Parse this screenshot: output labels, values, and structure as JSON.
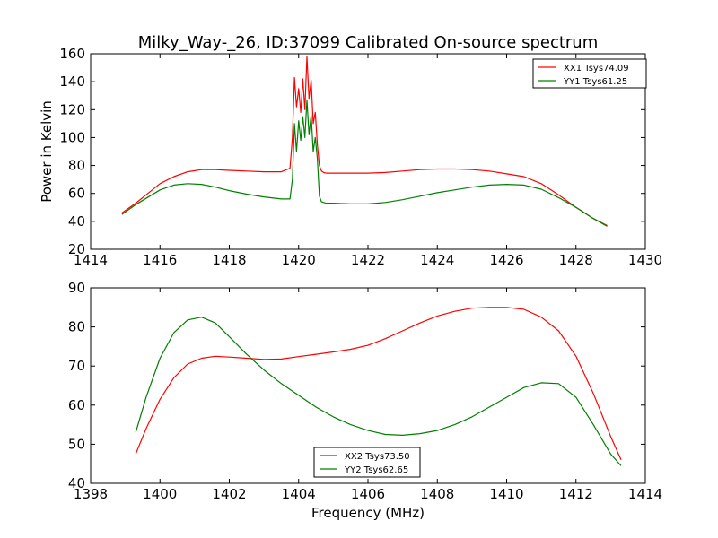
{
  "chart_data": [
    {
      "type": "line",
      "title": "Milky_Way-_26, ID:37099 Calibrated On-source spectrum",
      "xlabel": "",
      "ylabel": "Power in Kelvin",
      "xlim": [
        1414,
        1430
      ],
      "ylim": [
        20,
        160
      ],
      "xticks": [
        "1414",
        "1416",
        "1418",
        "1420",
        "1422",
        "1424",
        "1426",
        "1428",
        "1430"
      ],
      "yticks": [
        "20",
        "40",
        "60",
        "80",
        "100",
        "120",
        "140",
        "160"
      ],
      "legend_position": "top-right",
      "grid": false,
      "series": [
        {
          "name": "XX1 Tsys74.09",
          "color": "#ff0000",
          "x": [
            1414.9,
            1415.3,
            1415.7,
            1416.0,
            1416.4,
            1416.8,
            1417.2,
            1417.6,
            1418.0,
            1418.5,
            1419.0,
            1419.5,
            1419.75,
            1419.82,
            1419.88,
            1419.94,
            1420.0,
            1420.06,
            1420.12,
            1420.18,
            1420.24,
            1420.3,
            1420.36,
            1420.42,
            1420.48,
            1420.54,
            1420.6,
            1420.66,
            1420.72,
            1420.8,
            1421.0,
            1421.5,
            1422.0,
            1422.5,
            1423.0,
            1423.5,
            1424.0,
            1424.5,
            1425.0,
            1425.5,
            1426.0,
            1426.5,
            1427.0,
            1427.5,
            1428.0,
            1428.5,
            1428.9
          ],
          "y": [
            46,
            53,
            61,
            67,
            72,
            75.5,
            77,
            77,
            76.5,
            76,
            75.5,
            75.5,
            78,
            100,
            143,
            122,
            135,
            118,
            142,
            120,
            158,
            128,
            141,
            110,
            118,
            95,
            80,
            76,
            75,
            74.5,
            74.5,
            74.5,
            74.5,
            75,
            76,
            77,
            77.5,
            77.5,
            77,
            76,
            74,
            72,
            67,
            59,
            50,
            42,
            37
          ]
        },
        {
          "name": "YY1 Tsys61.25",
          "color": "#008000",
          "x": [
            1414.9,
            1415.3,
            1415.7,
            1416.0,
            1416.4,
            1416.8,
            1417.2,
            1417.6,
            1418.0,
            1418.5,
            1419.0,
            1419.5,
            1419.75,
            1419.82,
            1419.88,
            1419.94,
            1420.0,
            1420.06,
            1420.12,
            1420.18,
            1420.24,
            1420.3,
            1420.36,
            1420.42,
            1420.48,
            1420.54,
            1420.6,
            1420.66,
            1420.72,
            1420.8,
            1421.0,
            1421.5,
            1422.0,
            1422.5,
            1423.0,
            1423.5,
            1424.0,
            1424.5,
            1425.0,
            1425.5,
            1426.0,
            1426.5,
            1427.0,
            1427.5,
            1428.0,
            1428.5,
            1428.9
          ],
          "y": [
            45,
            52,
            58,
            62.5,
            66,
            67,
            66.5,
            64.5,
            62,
            59.5,
            57.5,
            56,
            56,
            70,
            110,
            90,
            112,
            98,
            115,
            100,
            127,
            102,
            116,
            90,
            100,
            85,
            58,
            54,
            53.5,
            53,
            53,
            52.5,
            52.5,
            53.5,
            55.5,
            58,
            60.5,
            62.5,
            64.5,
            66,
            66.5,
            66,
            63,
            57,
            50,
            42,
            36.5
          ]
        }
      ]
    },
    {
      "type": "line",
      "title": "",
      "xlabel": "Frequency (MHz)",
      "ylabel": "",
      "xlim": [
        1398,
        1414
      ],
      "ylim": [
        40,
        90
      ],
      "xticks": [
        "1398",
        "1400",
        "1402",
        "1404",
        "1406",
        "1408",
        "1410",
        "1412",
        "1414"
      ],
      "yticks": [
        "40",
        "50",
        "60",
        "70",
        "80",
        "90"
      ],
      "legend_position": "lower-center",
      "grid": false,
      "series": [
        {
          "name": "XX2 Tsys73.50",
          "color": "#ff0000",
          "x": [
            1399.3,
            1399.6,
            1400.0,
            1400.4,
            1400.8,
            1401.2,
            1401.6,
            1402.0,
            1402.5,
            1403.0,
            1403.5,
            1404.0,
            1404.5,
            1405.0,
            1405.5,
            1406.0,
            1406.5,
            1407.0,
            1407.5,
            1408.0,
            1408.5,
            1409.0,
            1409.5,
            1410.0,
            1410.5,
            1411.0,
            1411.5,
            1412.0,
            1412.5,
            1413.0,
            1413.3
          ],
          "y": [
            47.5,
            54,
            61.5,
            67,
            70.5,
            72,
            72.5,
            72.3,
            72,
            71.7,
            71.8,
            72.4,
            73,
            73.6,
            74.3,
            75.3,
            77,
            79,
            81,
            82.8,
            84,
            84.8,
            85,
            85,
            84.5,
            82.5,
            79,
            72.5,
            63,
            52,
            46
          ]
        },
        {
          "name": "YY2 Tsys62.65",
          "color": "#008000",
          "x": [
            1399.3,
            1399.6,
            1400.0,
            1400.4,
            1400.8,
            1401.2,
            1401.6,
            1402.0,
            1402.5,
            1403.0,
            1403.5,
            1404.0,
            1404.5,
            1405.0,
            1405.5,
            1406.0,
            1406.5,
            1407.0,
            1407.5,
            1408.0,
            1408.5,
            1409.0,
            1409.5,
            1410.0,
            1410.5,
            1411.0,
            1411.5,
            1412.0,
            1412.5,
            1413.0,
            1413.3
          ],
          "y": [
            53,
            62,
            72,
            78.5,
            81.8,
            82.5,
            81,
            77.5,
            73,
            69,
            65.5,
            62.5,
            59.5,
            57,
            55,
            53.5,
            52.5,
            52.3,
            52.7,
            53.5,
            55,
            57,
            59.5,
            62,
            64.5,
            65.7,
            65.5,
            62,
            55,
            47.5,
            44.5
          ]
        }
      ]
    }
  ]
}
